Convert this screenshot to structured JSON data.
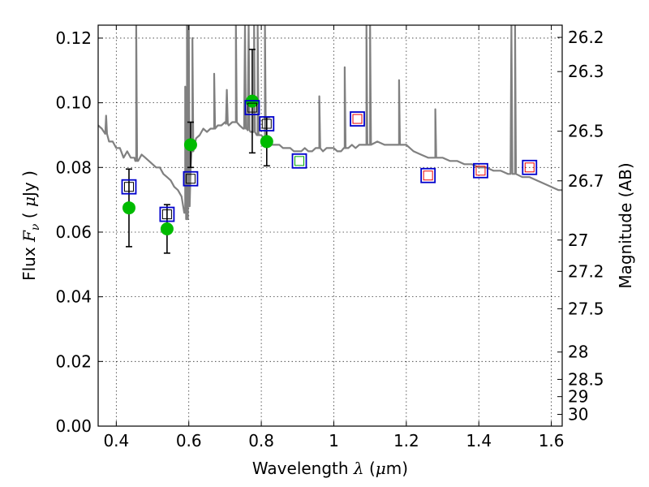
{
  "chart_data": {
    "type": "scatter",
    "xlabel": "Wavelength  λ (μm)",
    "ylabel": "Flux  F_ν  ( μJy )",
    "ylabel_parts": [
      "Flux  ",
      "F",
      "ν",
      "  ( ",
      "μ",
      "Jy )"
    ],
    "xlabel_parts": [
      "Wavelength  ",
      "λ",
      " (",
      "μ",
      "m)"
    ],
    "y2label": "Magnitude (AB)",
    "xlim": [
      0.35,
      1.63
    ],
    "ylim": [
      0.0,
      0.124
    ],
    "grid": true,
    "x_ticks": [
      {
        "value": 0.4,
        "label": "0.4"
      },
      {
        "value": 0.6,
        "label": "0.6"
      },
      {
        "value": 0.8,
        "label": "0.8"
      },
      {
        "value": 1.0,
        "label": "1"
      },
      {
        "value": 1.2,
        "label": "1.2"
      },
      {
        "value": 1.4,
        "label": "1.4"
      },
      {
        "value": 1.6,
        "label": "1.6"
      }
    ],
    "y_ticks": [
      {
        "value": 0.0,
        "label": "0.00"
      },
      {
        "value": 0.02,
        "label": "0.02"
      },
      {
        "value": 0.04,
        "label": "0.04"
      },
      {
        "value": 0.06,
        "label": "0.06"
      },
      {
        "value": 0.08,
        "label": "0.08"
      },
      {
        "value": 0.1,
        "label": "0.10"
      },
      {
        "value": 0.12,
        "label": "0.12"
      }
    ],
    "mag_ticks": [
      {
        "value": 26.2,
        "label": "26.2"
      },
      {
        "value": 26.3,
        "label": "26.3"
      },
      {
        "value": 26.5,
        "label": "26.5"
      },
      {
        "value": 26.7,
        "label": "26.7"
      },
      {
        "value": 27.0,
        "label": "27"
      },
      {
        "value": 27.2,
        "label": "27.2"
      },
      {
        "value": 27.5,
        "label": "27.5"
      },
      {
        "value": 28.0,
        "label": "28"
      },
      {
        "value": 28.5,
        "label": "28.5"
      },
      {
        "value": 29.0,
        "label": "29"
      },
      {
        "value": 30.0,
        "label": "30"
      }
    ],
    "series": [
      {
        "name": "Model SED",
        "kind": "line",
        "color": "#808080",
        "points": [
          [
            0.35,
            0.093
          ],
          [
            0.36,
            0.092
          ],
          [
            0.37,
            0.091
          ],
          [
            0.38,
            0.088
          ],
          [
            0.39,
            0.088
          ],
          [
            0.4,
            0.086
          ],
          [
            0.41,
            0.086
          ],
          [
            0.42,
            0.083
          ],
          [
            0.43,
            0.085
          ],
          [
            0.44,
            0.083
          ],
          [
            0.45,
            0.083
          ],
          [
            0.455,
            0.082
          ],
          [
            0.46,
            0.082
          ],
          [
            0.47,
            0.084
          ],
          [
            0.48,
            0.083
          ],
          [
            0.49,
            0.082
          ],
          [
            0.5,
            0.081
          ],
          [
            0.51,
            0.08
          ],
          [
            0.52,
            0.08
          ],
          [
            0.53,
            0.078
          ],
          [
            0.54,
            0.077
          ],
          [
            0.55,
            0.076
          ],
          [
            0.56,
            0.074
          ],
          [
            0.57,
            0.073
          ],
          [
            0.58,
            0.071
          ],
          [
            0.59,
            0.066
          ],
          [
            0.595,
            0.064
          ],
          [
            0.6,
            0.068
          ],
          [
            0.605,
            0.08
          ],
          [
            0.61,
            0.085
          ],
          [
            0.62,
            0.089
          ],
          [
            0.63,
            0.09
          ],
          [
            0.64,
            0.092
          ],
          [
            0.65,
            0.091
          ],
          [
            0.66,
            0.092
          ],
          [
            0.67,
            0.092
          ],
          [
            0.68,
            0.093
          ],
          [
            0.69,
            0.093
          ],
          [
            0.7,
            0.094
          ],
          [
            0.71,
            0.093
          ],
          [
            0.72,
            0.094
          ],
          [
            0.73,
            0.094
          ],
          [
            0.74,
            0.093
          ],
          [
            0.75,
            0.092
          ],
          [
            0.76,
            0.092
          ],
          [
            0.77,
            0.091
          ],
          [
            0.78,
            0.091
          ],
          [
            0.79,
            0.09
          ],
          [
            0.8,
            0.09
          ],
          [
            0.81,
            0.089
          ],
          [
            0.82,
            0.089
          ],
          [
            0.83,
            0.087
          ],
          [
            0.84,
            0.087
          ],
          [
            0.85,
            0.087
          ],
          [
            0.86,
            0.086
          ],
          [
            0.87,
            0.086
          ],
          [
            0.88,
            0.086
          ],
          [
            0.89,
            0.085
          ],
          [
            0.9,
            0.085
          ],
          [
            0.91,
            0.085
          ],
          [
            0.92,
            0.086
          ],
          [
            0.93,
            0.085
          ],
          [
            0.94,
            0.085
          ],
          [
            0.95,
            0.086
          ],
          [
            0.96,
            0.086
          ],
          [
            0.97,
            0.085
          ],
          [
            0.98,
            0.086
          ],
          [
            0.99,
            0.086
          ],
          [
            1.0,
            0.086
          ],
          [
            1.01,
            0.085
          ],
          [
            1.02,
            0.085
          ],
          [
            1.03,
            0.086
          ],
          [
            1.04,
            0.086
          ],
          [
            1.05,
            0.087
          ],
          [
            1.06,
            0.086
          ],
          [
            1.07,
            0.087
          ],
          [
            1.08,
            0.087
          ],
          [
            1.09,
            0.087
          ],
          [
            1.1,
            0.087
          ],
          [
            1.12,
            0.088
          ],
          [
            1.14,
            0.087
          ],
          [
            1.16,
            0.087
          ],
          [
            1.18,
            0.087
          ],
          [
            1.2,
            0.087
          ],
          [
            1.22,
            0.085
          ],
          [
            1.24,
            0.084
          ],
          [
            1.26,
            0.083
          ],
          [
            1.28,
            0.083
          ],
          [
            1.3,
            0.083
          ],
          [
            1.32,
            0.082
          ],
          [
            1.34,
            0.082
          ],
          [
            1.36,
            0.081
          ],
          [
            1.38,
            0.081
          ],
          [
            1.4,
            0.08
          ],
          [
            1.42,
            0.08
          ],
          [
            1.44,
            0.079
          ],
          [
            1.46,
            0.079
          ],
          [
            1.48,
            0.078
          ],
          [
            1.5,
            0.078
          ],
          [
            1.52,
            0.077
          ],
          [
            1.54,
            0.077
          ],
          [
            1.56,
            0.076
          ],
          [
            1.58,
            0.075
          ],
          [
            1.6,
            0.074
          ],
          [
            1.62,
            0.073
          ],
          [
            1.63,
            0.073
          ]
        ],
        "emission_lines": [
          {
            "x": 0.372,
            "peak": 0.096
          },
          {
            "x": 0.455,
            "peak": 0.124
          },
          {
            "x": 0.59,
            "peak": 0.105
          },
          {
            "x": 0.595,
            "peak": 0.124
          },
          {
            "x": 0.6,
            "peak": 0.124
          },
          {
            "x": 0.61,
            "peak": 0.12
          },
          {
            "x": 0.67,
            "peak": 0.109
          },
          {
            "x": 0.705,
            "peak": 0.104
          },
          {
            "x": 0.73,
            "peak": 0.124
          },
          {
            "x": 0.755,
            "peak": 0.124
          },
          {
            "x": 0.765,
            "peak": 0.124
          },
          {
            "x": 0.78,
            "peak": 0.124
          },
          {
            "x": 0.79,
            "peak": 0.124
          },
          {
            "x": 0.81,
            "peak": 0.124
          },
          {
            "x": 0.96,
            "peak": 0.102
          },
          {
            "x": 1.03,
            "peak": 0.111
          },
          {
            "x": 1.09,
            "peak": 0.124
          },
          {
            "x": 1.1,
            "peak": 0.124
          },
          {
            "x": 1.18,
            "peak": 0.107
          },
          {
            "x": 1.28,
            "peak": 0.098
          },
          {
            "x": 1.49,
            "peak": 0.124
          },
          {
            "x": 1.5,
            "peak": 0.124
          }
        ]
      },
      {
        "name": "Observed photometry",
        "kind": "points",
        "color": "#00bb00",
        "errorbar_color": "#000000",
        "points": [
          {
            "x": 0.435,
            "y": 0.0675,
            "err": 0.012
          },
          {
            "x": 0.54,
            "y": 0.061,
            "err": 0.0075
          },
          {
            "x": 0.605,
            "y": 0.087,
            "err": 0.007
          },
          {
            "x": 0.775,
            "y": 0.1005,
            "err": 0.016
          },
          {
            "x": 0.815,
            "y": 0.088,
            "err": 0.0075
          }
        ]
      },
      {
        "name": "Model photometry (optical)",
        "kind": "open-squares",
        "color": "#0000cc",
        "inner_color": "#000000",
        "points": [
          {
            "x": 0.435,
            "y": 0.074
          },
          {
            "x": 0.54,
            "y": 0.0655
          },
          {
            "x": 0.605,
            "y": 0.0765
          },
          {
            "x": 0.775,
            "y": 0.0985
          },
          {
            "x": 0.815,
            "y": 0.0935
          }
        ]
      },
      {
        "name": "Model photometry (z-band)",
        "kind": "open-squares",
        "color": "#0000cc",
        "inner_color": "#00aa00",
        "points": [
          {
            "x": 0.905,
            "y": 0.082
          }
        ]
      },
      {
        "name": "Model photometry (near-IR)",
        "kind": "open-squares",
        "color": "#0000cc",
        "inner_color": "#ee0000",
        "points": [
          {
            "x": 1.065,
            "y": 0.095
          },
          {
            "x": 1.26,
            "y": 0.0775
          },
          {
            "x": 1.405,
            "y": 0.079
          },
          {
            "x": 1.54,
            "y": 0.08
          }
        ]
      }
    ]
  }
}
